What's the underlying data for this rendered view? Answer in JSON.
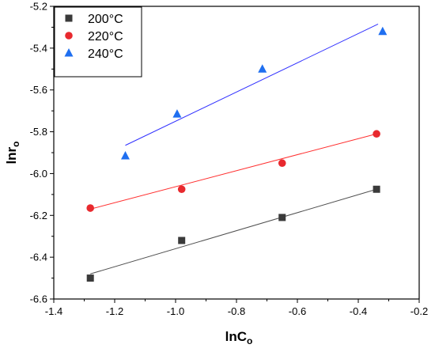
{
  "chart_data": {
    "type": "scatter",
    "title": "",
    "xlabel": {
      "main": "lnC",
      "sub": "o"
    },
    "ylabel": {
      "main": "lnr",
      "sub": "o"
    },
    "xlim": [
      -1.4,
      -0.2
    ],
    "ylim": [
      -6.6,
      -5.2
    ],
    "xticks": [
      -1.4,
      -1.2,
      -1.0,
      -0.8,
      -0.6,
      -0.4,
      -0.2
    ],
    "yticks": [
      -6.6,
      -6.4,
      -6.2,
      -6.0,
      -5.8,
      -5.6,
      -5.4,
      -5.2
    ],
    "xtick_labels": [
      "-1.4",
      "-1.2",
      "-1.0",
      "-0.8",
      "-0.6",
      "-0.4",
      "-0.2"
    ],
    "ytick_labels": [
      "-6.6",
      "-6.4",
      "-6.2",
      "-6.0",
      "-5.8",
      "-5.6",
      "-5.4",
      "-5.2"
    ],
    "grid": false,
    "legend_position": "top-left",
    "series": [
      {
        "name": "200°C",
        "marker": "square",
        "color": "#3a3a3a",
        "line_color": "#505050",
        "points": [
          [
            -1.28,
            -6.5
          ],
          [
            -0.98,
            -6.32
          ],
          [
            -0.65,
            -6.21
          ],
          [
            -0.34,
            -6.075
          ]
        ],
        "fit": [
          [
            -1.28,
            -6.48
          ],
          [
            -0.34,
            -6.075
          ]
        ]
      },
      {
        "name": "220°C",
        "marker": "circle",
        "color": "#e8292e",
        "line_color": "#ff3030",
        "points": [
          [
            -1.28,
            -6.165
          ],
          [
            -0.98,
            -6.075
          ],
          [
            -0.65,
            -5.95
          ],
          [
            -0.34,
            -5.81
          ]
        ],
        "fit": [
          [
            -1.28,
            -6.17
          ],
          [
            -0.34,
            -5.81
          ]
        ]
      },
      {
        "name": "240°C",
        "marker": "triangle",
        "color": "#1f6ff0",
        "line_color": "#3030ff",
        "points": [
          [
            -1.165,
            -5.915
          ],
          [
            -0.995,
            -5.715
          ],
          [
            -0.715,
            -5.5
          ],
          [
            -0.32,
            -5.32
          ]
        ],
        "fit": [
          [
            -1.165,
            -5.865
          ],
          [
            -0.335,
            -5.285
          ]
        ]
      }
    ]
  }
}
